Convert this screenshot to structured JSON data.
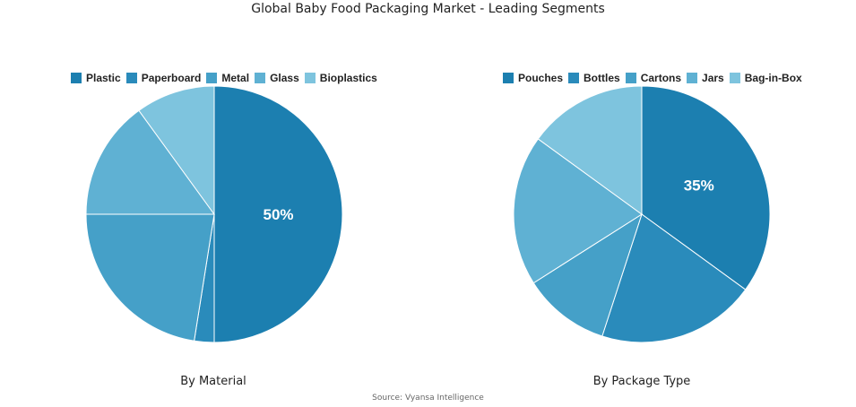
{
  "title": "Global Baby Food Packaging Market - Leading Segments",
  "source": "Source: Vyansa Intelligence",
  "chart_data": [
    {
      "type": "pie",
      "subtitle": "By Material",
      "legend_position": "top",
      "slices": [
        {
          "label": "Plastic",
          "value": 50,
          "color": "#1c7fb0",
          "data_label": "50%"
        },
        {
          "label": "Paperboard",
          "value": 2.5,
          "color": "#2a8bbb"
        },
        {
          "label": "Metal",
          "value": 22.5,
          "color": "#45a0c8"
        },
        {
          "label": "Glass",
          "value": 15,
          "color": "#5fb1d3"
        },
        {
          "label": "Bioplastics",
          "value": 10,
          "color": "#7ec4de"
        }
      ]
    },
    {
      "type": "pie",
      "subtitle": "By Package Type",
      "legend_position": "top",
      "slices": [
        {
          "label": "Pouches",
          "value": 35,
          "color": "#1c7fb0",
          "data_label": "35%"
        },
        {
          "label": "Bottles",
          "value": 20,
          "color": "#2a8bbb"
        },
        {
          "label": "Cartons",
          "value": 11,
          "color": "#45a0c8"
        },
        {
          "label": "Jars",
          "value": 19,
          "color": "#5fb1d3"
        },
        {
          "label": "Bag-in-Box",
          "value": 15,
          "color": "#7ec4de"
        }
      ]
    }
  ]
}
